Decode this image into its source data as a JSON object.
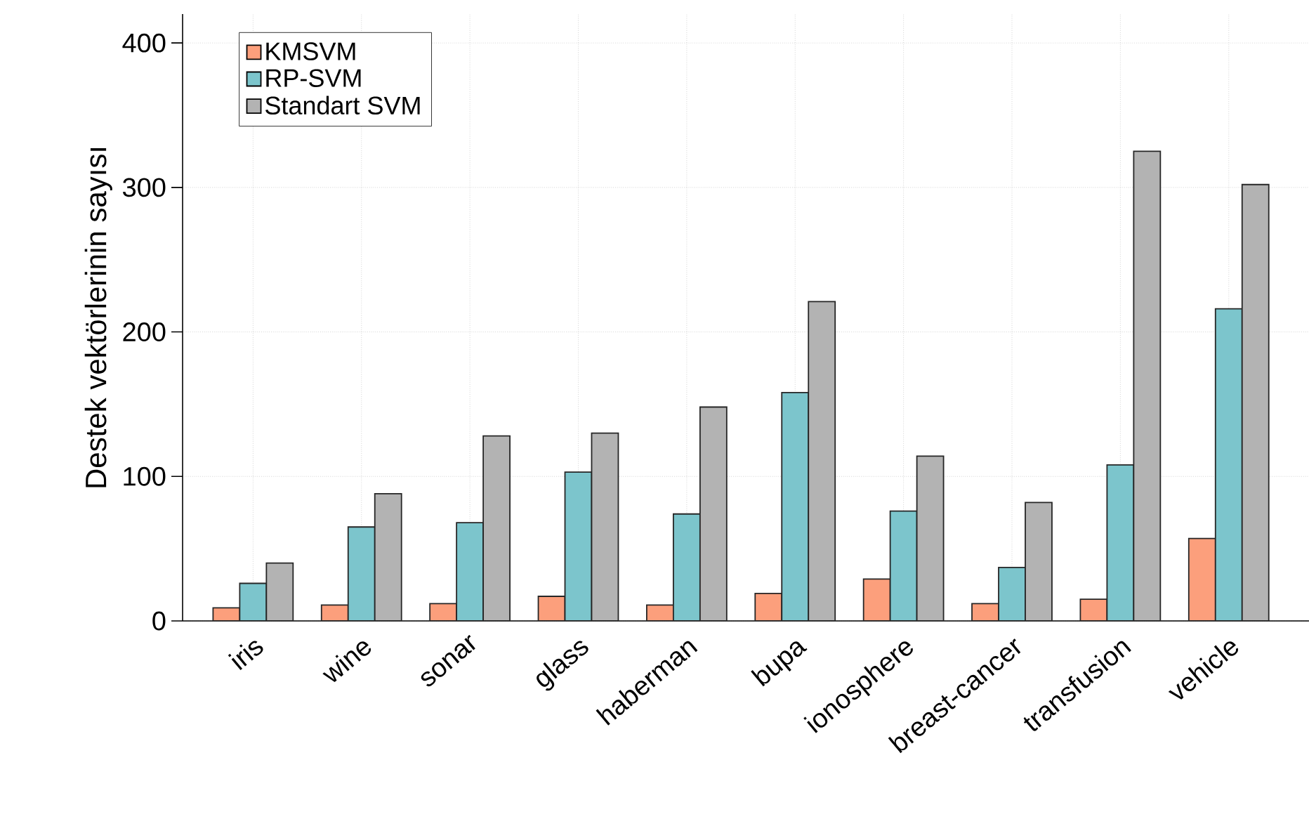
{
  "chart_data": {
    "type": "bar",
    "ylabel": "Destek vektörlerinin sayısı",
    "categories": [
      "iris",
      "wine",
      "sonar",
      "glass",
      "haberman",
      "bupa",
      "ionosphere",
      "breast-cancer",
      "transfusion",
      "vehicle"
    ],
    "series": [
      {
        "name": "KMSVM",
        "color": "#fc9f7c",
        "values": [
          9,
          11,
          12,
          17,
          11,
          19,
          29,
          12,
          15,
          57
        ]
      },
      {
        "name": "RP-SVM",
        "color": "#7cc5cc",
        "values": [
          26,
          65,
          68,
          103,
          74,
          158,
          76,
          37,
          108,
          216
        ]
      },
      {
        "name": "Standart SVM",
        "color": "#b3b3b3",
        "values": [
          40,
          88,
          128,
          130,
          148,
          221,
          114,
          82,
          325,
          302
        ]
      }
    ],
    "ylim": [
      0,
      420
    ],
    "yticks": [
      0,
      100,
      200,
      300,
      400
    ],
    "grid": true,
    "legend": "top left"
  }
}
